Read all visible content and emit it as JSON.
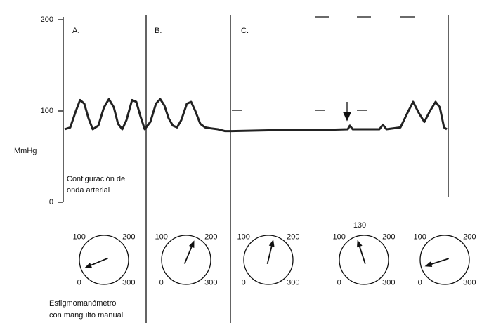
{
  "chart_data": {
    "type": "line",
    "ylabel": "MmHg",
    "ylim": [
      0,
      200
    ],
    "yticks": [
      0,
      100,
      200
    ],
    "xlim": [
      0,
      550
    ],
    "sections": [
      "A.",
      "B.",
      "C."
    ],
    "annotation": [
      "Configuración de",
      "onda arterial"
    ],
    "x": [
      2,
      10,
      18,
      24,
      30,
      36,
      42,
      50,
      58,
      65,
      72,
      78,
      84,
      90,
      98,
      104,
      110,
      116,
      124,
      132,
      138,
      144,
      150,
      156,
      162,
      168,
      176,
      182,
      188,
      195,
      202,
      210,
      220,
      230,
      240,
      300,
      360,
      405,
      408,
      412,
      430,
      450,
      455,
      460,
      480,
      490,
      498,
      506,
      514,
      522,
      530,
      536,
      542,
      546
    ],
    "series": [
      {
        "color": "#222222",
        "values": [
          80,
          82,
          100,
          112,
          108,
          92,
          80,
          84,
          104,
          113,
          104,
          86,
          80,
          90,
          112,
          110,
          94,
          80,
          88,
          108,
          113,
          106,
          92,
          84,
          82,
          90,
          108,
          110,
          100,
          86,
          82,
          81,
          80,
          78,
          78,
          79,
          79,
          80,
          84,
          80,
          80,
          80,
          85,
          80,
          82,
          98,
          110,
          98,
          88,
          100,
          110,
          104,
          82,
          80
        ]
      }
    ],
    "gauge_caption": [
      "Esfigmomanómetro",
      "con manguito manual"
    ],
    "dial_ticks": [
      0,
      100,
      200,
      300
    ],
    "gauges": [
      {
        "needle": 25
      },
      {
        "needle": 175
      },
      {
        "needle": 165
      },
      {
        "needle": 130
      },
      {
        "needle": 30
      }
    ]
  }
}
